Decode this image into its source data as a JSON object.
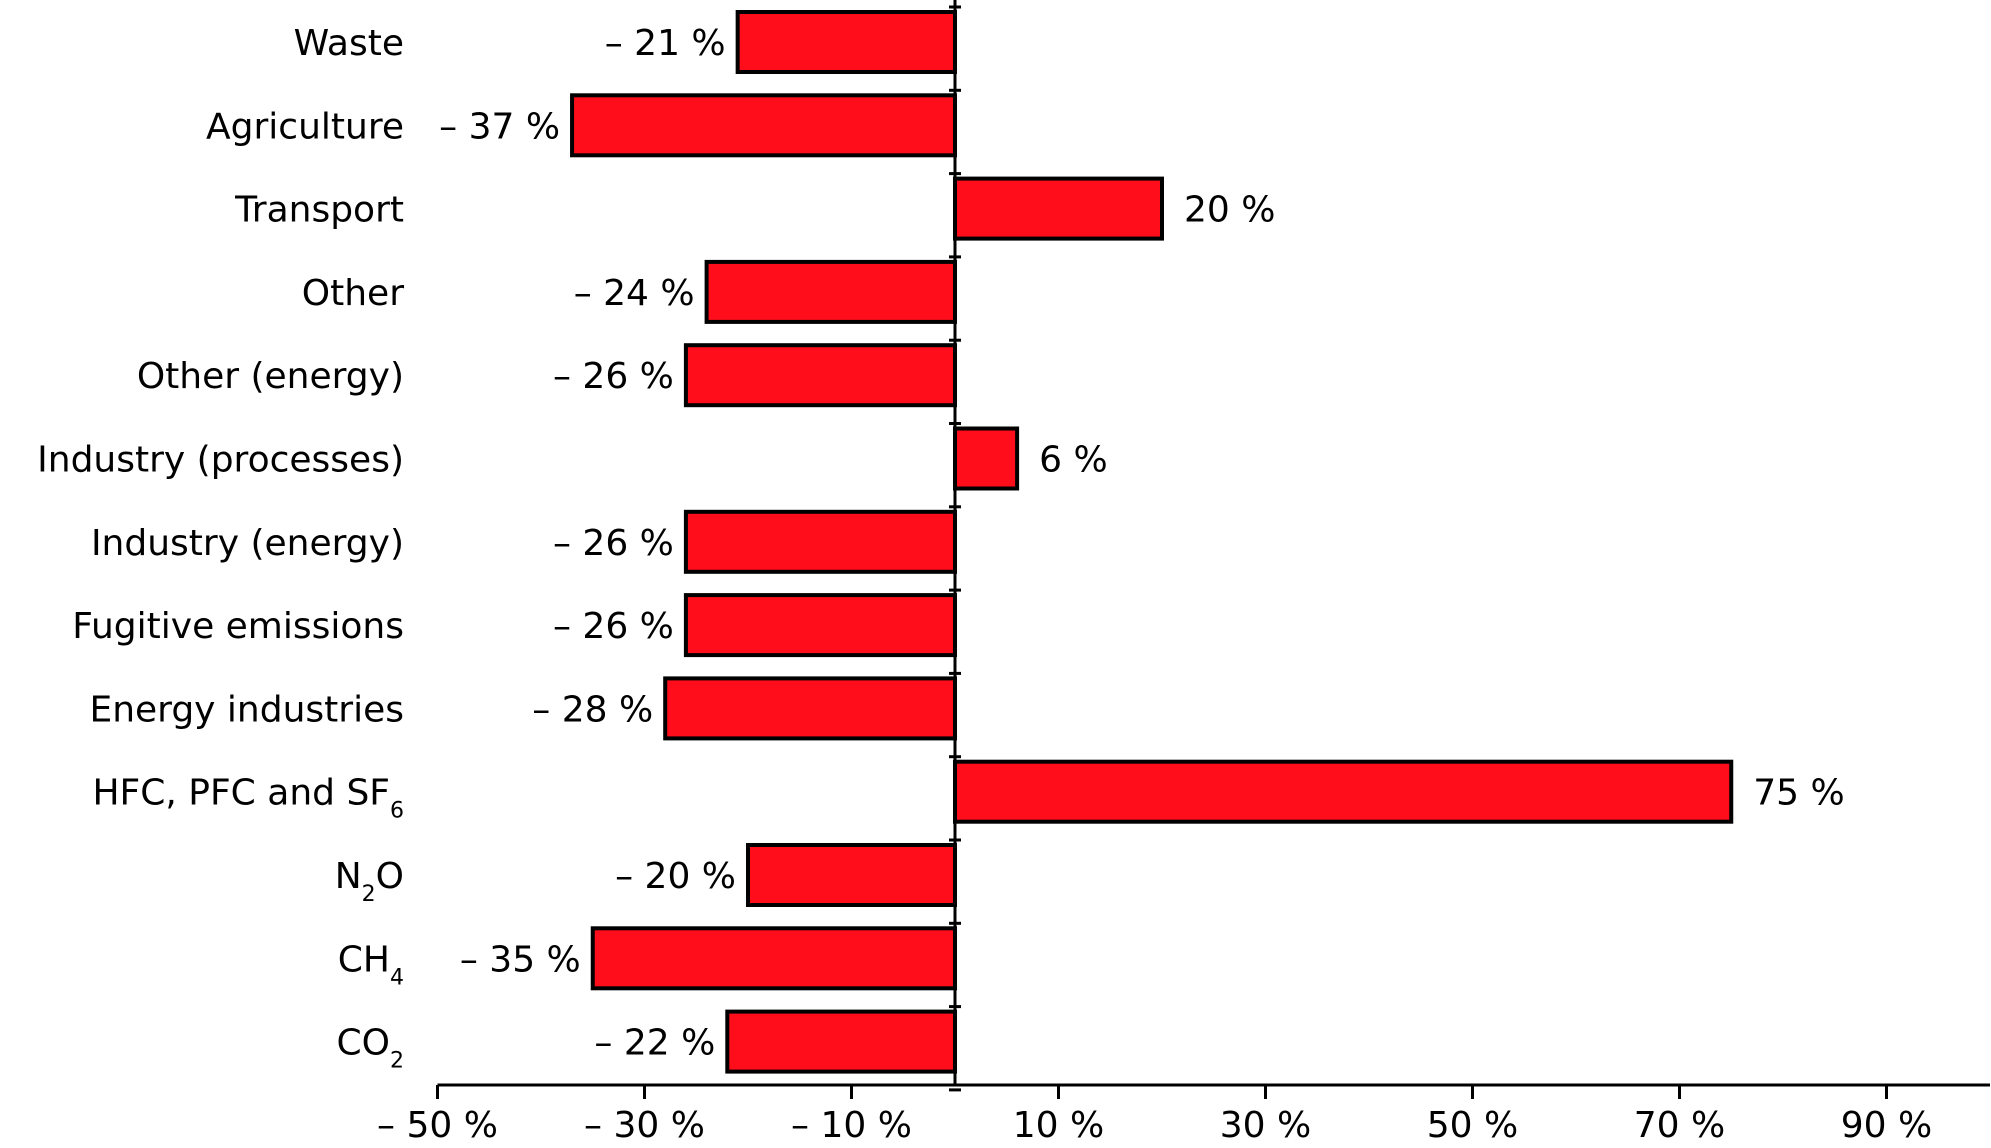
{
  "chart_data": {
    "type": "bar",
    "orientation": "horizontal",
    "title": "",
    "xlabel": "",
    "ylabel": "",
    "xlim": [
      -50,
      100
    ],
    "grid": false,
    "bar_color": "#ff0d1a",
    "categories": [
      {
        "text": "Waste",
        "sub": "",
        "suffix": ""
      },
      {
        "text": "Agriculture",
        "sub": "",
        "suffix": ""
      },
      {
        "text": "Transport",
        "sub": "",
        "suffix": ""
      },
      {
        "text": "Other",
        "sub": "",
        "suffix": ""
      },
      {
        "text": "Other (energy)",
        "sub": "",
        "suffix": ""
      },
      {
        "text": "Industry (processes)",
        "sub": "",
        "suffix": ""
      },
      {
        "text": "Industry (energy)",
        "sub": "",
        "suffix": ""
      },
      {
        "text": "Fugitive emissions",
        "sub": "",
        "suffix": ""
      },
      {
        "text": "Energy industries",
        "sub": "",
        "suffix": ""
      },
      {
        "text": "HFC, PFC and SF",
        "sub": "6",
        "suffix": ""
      },
      {
        "text": "N",
        "sub": "2",
        "suffix": "O"
      },
      {
        "text": "CH",
        "sub": "4",
        "suffix": ""
      },
      {
        "text": "CO",
        "sub": "2",
        "suffix": ""
      }
    ],
    "values": [
      -21,
      -37,
      20,
      -24,
      -26,
      6,
      -26,
      -26,
      -28,
      75,
      -20,
      -35,
      -22
    ],
    "value_labels": [
      "– 21 %",
      "– 37 %",
      "20 %",
      "– 24 %",
      "– 26 %",
      "6 %",
      "– 26 %",
      "– 26 %",
      "– 28 %",
      "75 %",
      "– 20 %",
      "– 35 %",
      "– 22 %"
    ],
    "x_ticks": [
      -50,
      -30,
      -10,
      10,
      30,
      50,
      70,
      90
    ],
    "x_tick_labels": [
      "– 50 %",
      "– 30 %",
      "– 10 %",
      "10 %",
      "30 %",
      "50 %",
      "70 %",
      "90  %"
    ]
  }
}
